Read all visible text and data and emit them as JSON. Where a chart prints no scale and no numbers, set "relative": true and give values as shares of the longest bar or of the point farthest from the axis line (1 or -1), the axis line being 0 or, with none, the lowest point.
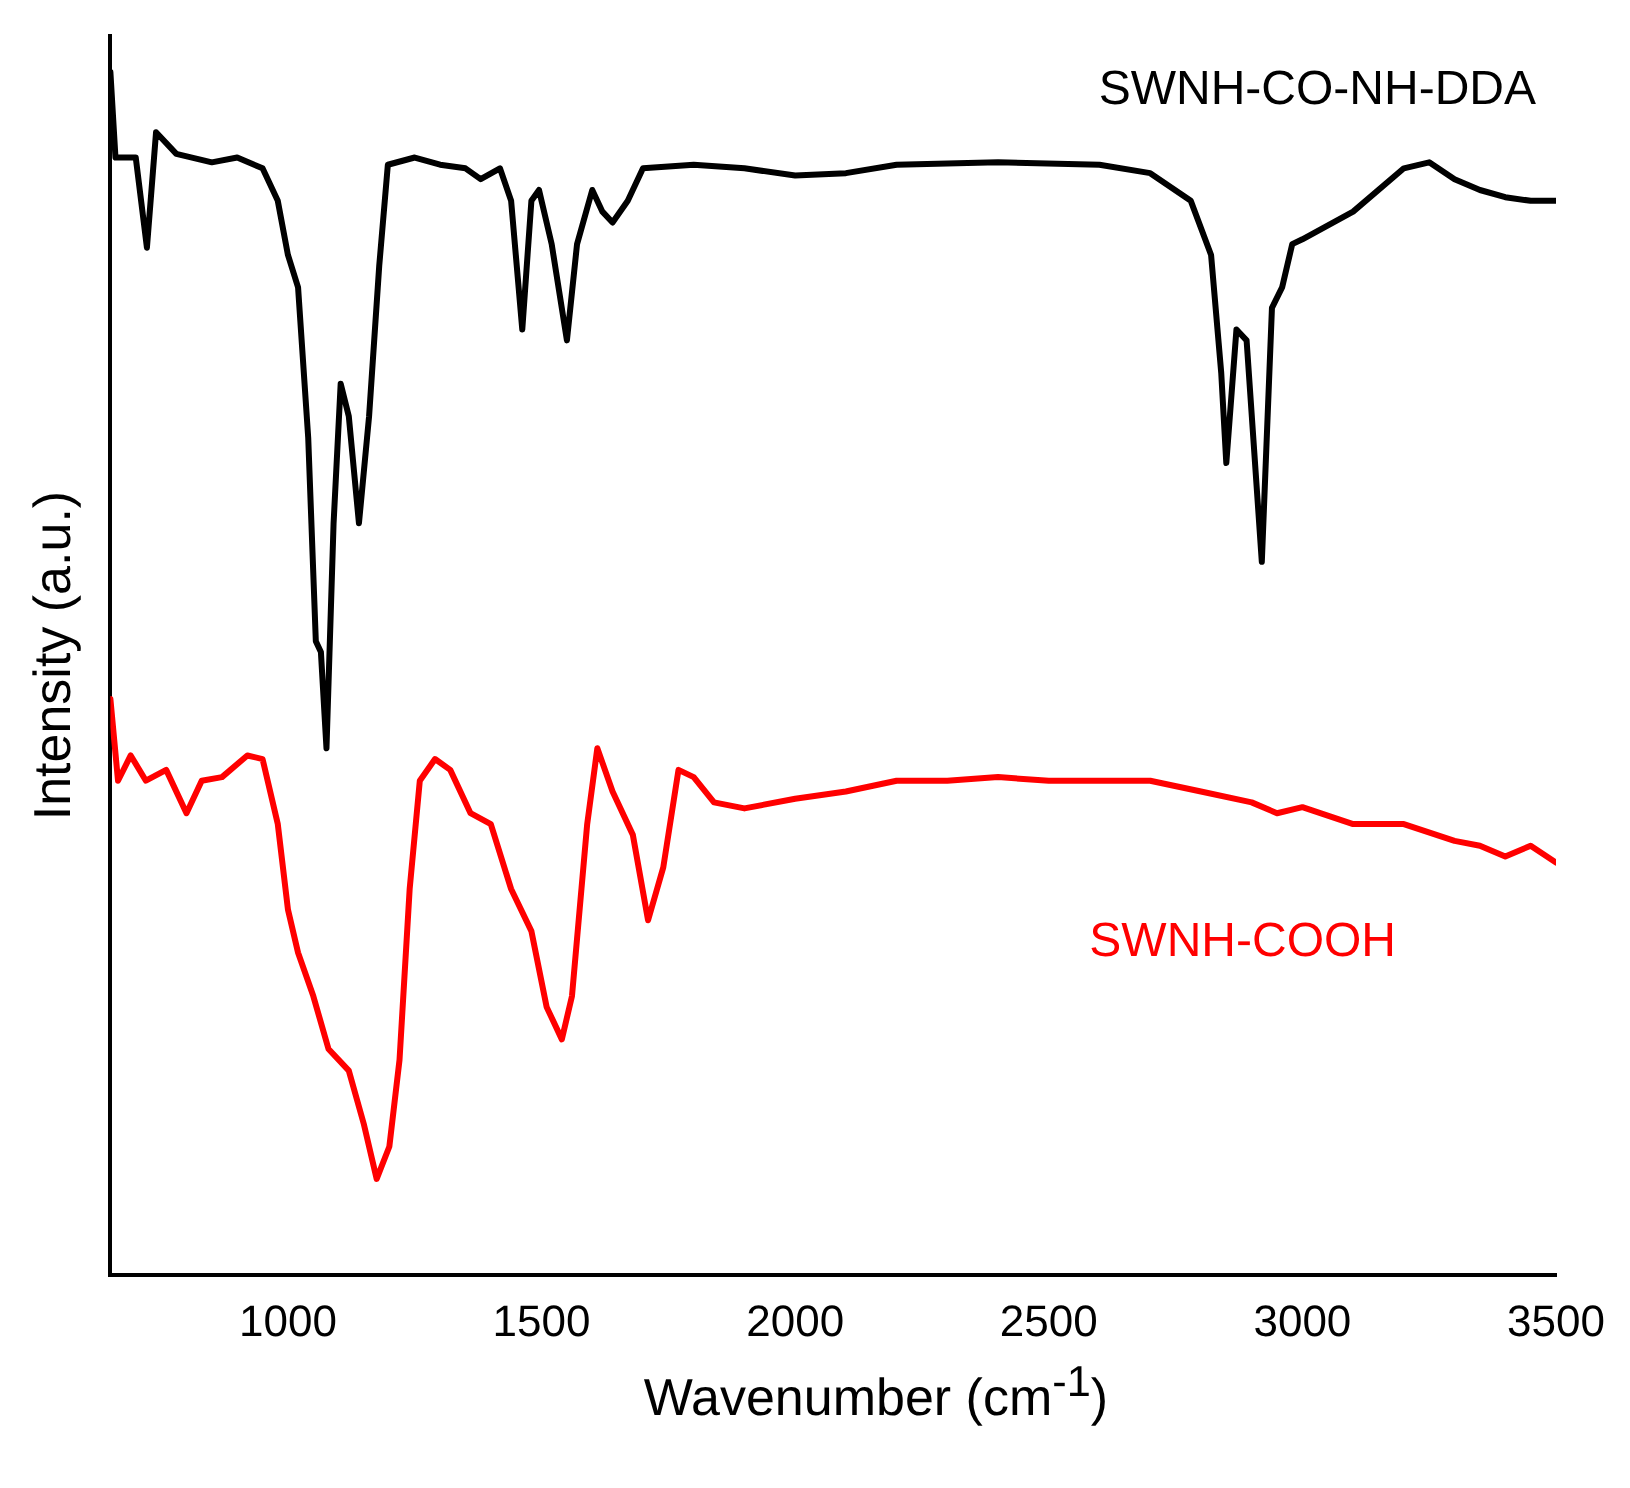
{
  "chart_data": {
    "type": "line",
    "xlabel": "Wavenumber (cm$^{-1}$)",
    "ylabel": "Intensity (a.u.)",
    "relative": true,
    "xlim": [
      650,
      3500
    ],
    "xticks": [
      1000,
      1500,
      2000,
      2500,
      3000,
      3500
    ],
    "legend": false,
    "grid": false,
    "marker": "none",
    "line_style": "solid",
    "series": [
      {
        "name": "SWNH-CO-NH-DDA",
        "color": "#000000",
        "x": [
          650,
          660,
          700,
          722,
          740,
          780,
          850,
          900,
          950,
          980,
          1000,
          1020,
          1040,
          1055,
          1065,
          1076,
          1090,
          1104,
          1120,
          1140,
          1160,
          1180,
          1197,
          1250,
          1300,
          1350,
          1380,
          1418,
          1440,
          1462,
          1480,
          1495,
          1520,
          1550,
          1570,
          1600,
          1620,
          1640,
          1670,
          1700,
          1800,
          1900,
          2000,
          2100,
          2200,
          2400,
          2600,
          2700,
          2780,
          2820,
          2840,
          2850,
          2870,
          2890,
          2920,
          2940,
          2960,
          2980,
          3000,
          3100,
          3200,
          3250,
          3300,
          3350,
          3400,
          3450,
          3500
        ],
        "values": [
          1.0,
          0.929,
          0.929,
          0.854,
          0.95,
          0.932,
          0.925,
          0.929,
          0.92,
          0.893,
          0.848,
          0.821,
          0.696,
          0.527,
          0.518,
          0.438,
          0.625,
          0.741,
          0.714,
          0.625,
          0.714,
          0.839,
          0.923,
          0.929,
          0.923,
          0.92,
          0.911,
          0.92,
          0.893,
          0.786,
          0.893,
          0.902,
          0.857,
          0.777,
          0.857,
          0.902,
          0.884,
          0.875,
          0.893,
          0.92,
          0.923,
          0.92,
          0.914,
          0.916,
          0.923,
          0.925,
          0.923,
          0.916,
          0.893,
          0.848,
          0.75,
          0.675,
          0.786,
          0.777,
          0.593,
          0.804,
          0.821,
          0.857,
          0.861,
          0.884,
          0.92,
          0.925,
          0.911,
          0.902,
          0.896,
          0.893,
          0.893
        ]
      },
      {
        "name": "SWNH-COOH",
        "color": "#ff0000",
        "x": [
          650,
          665,
          690,
          720,
          760,
          800,
          830,
          870,
          920,
          950,
          980,
          1000,
          1020,
          1050,
          1080,
          1120,
          1150,
          1175,
          1200,
          1220,
          1240,
          1260,
          1290,
          1320,
          1360,
          1400,
          1440,
          1480,
          1510,
          1540,
          1560,
          1590,
          1610,
          1640,
          1680,
          1710,
          1740,
          1770,
          1800,
          1840,
          1900,
          2000,
          2100,
          2200,
          2300,
          2400,
          2500,
          2600,
          2700,
          2800,
          2900,
          2950,
          3000,
          3100,
          3200,
          3300,
          3350,
          3400,
          3450,
          3500
        ],
        "values": [
          0.479,
          0.411,
          0.432,
          0.411,
          0.42,
          0.384,
          0.411,
          0.414,
          0.432,
          0.429,
          0.375,
          0.304,
          0.268,
          0.232,
          0.188,
          0.17,
          0.125,
          0.08,
          0.107,
          0.179,
          0.321,
          0.411,
          0.429,
          0.42,
          0.384,
          0.375,
          0.321,
          0.286,
          0.223,
          0.196,
          0.232,
          0.375,
          0.438,
          0.402,
          0.366,
          0.295,
          0.339,
          0.42,
          0.414,
          0.393,
          0.388,
          0.396,
          0.402,
          0.411,
          0.411,
          0.414,
          0.411,
          0.411,
          0.411,
          0.402,
          0.393,
          0.384,
          0.389,
          0.375,
          0.375,
          0.361,
          0.357,
          0.348,
          0.357,
          0.343
        ]
      }
    ]
  }
}
